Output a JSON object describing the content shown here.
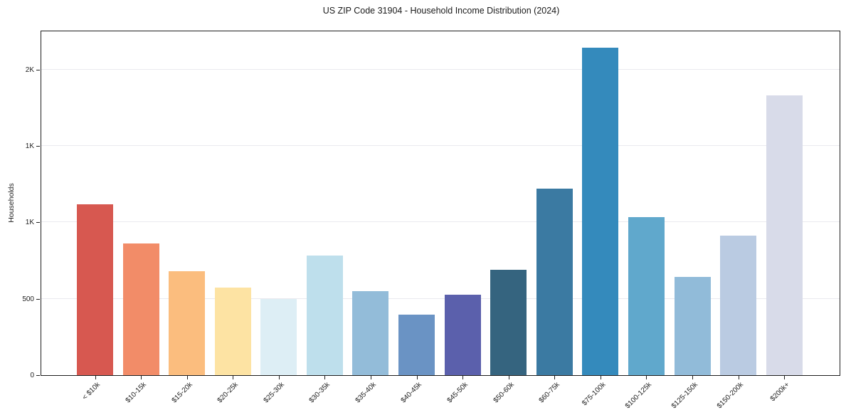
{
  "chart_data": {
    "type": "bar",
    "title": "US ZIP Code 31904 - Household Income Distribution (2024)",
    "xlabel": "",
    "ylabel": "Households",
    "categories": [
      "< $10k",
      "$10-15k",
      "$15-20k",
      "$20-25k",
      "$25-30k",
      "$30-35k",
      "$35-40k",
      "$40-45k",
      "$45-50k",
      "$50-60k",
      "$60-75k",
      "$75-100k",
      "$100-125k",
      "$125-150k",
      "$150-200k",
      "$200k+"
    ],
    "values": [
      1120,
      860,
      680,
      575,
      500,
      785,
      550,
      395,
      525,
      690,
      1220,
      2145,
      1035,
      645,
      915,
      1830
    ],
    "bar_colors": [
      "#d75850",
      "#f28c68",
      "#fbbd7e",
      "#fde3a3",
      "#ddeef5",
      "#bedfec",
      "#93bcd9",
      "#6a93c4",
      "#5b60ac",
      "#35647f",
      "#3b7aa2",
      "#348abc",
      "#60a8cc",
      "#91bbd9",
      "#bacbe2",
      "#d8dbe9"
    ],
    "ylim": [
      0,
      2255
    ],
    "yticks": [
      {
        "value": 0,
        "label": "0"
      },
      {
        "value": 500,
        "label": "500"
      },
      {
        "value": 1000,
        "label": "1K"
      },
      {
        "value": 1500,
        "label": "1K"
      },
      {
        "value": 2000,
        "label": "2K"
      }
    ],
    "grid": "horizontal",
    "gridline_color": "#eaeaef",
    "spine_color": "#1f1f1f",
    "background_color": "#ffffff",
    "legend": "none",
    "x_tick_rotation_deg": 45
  }
}
